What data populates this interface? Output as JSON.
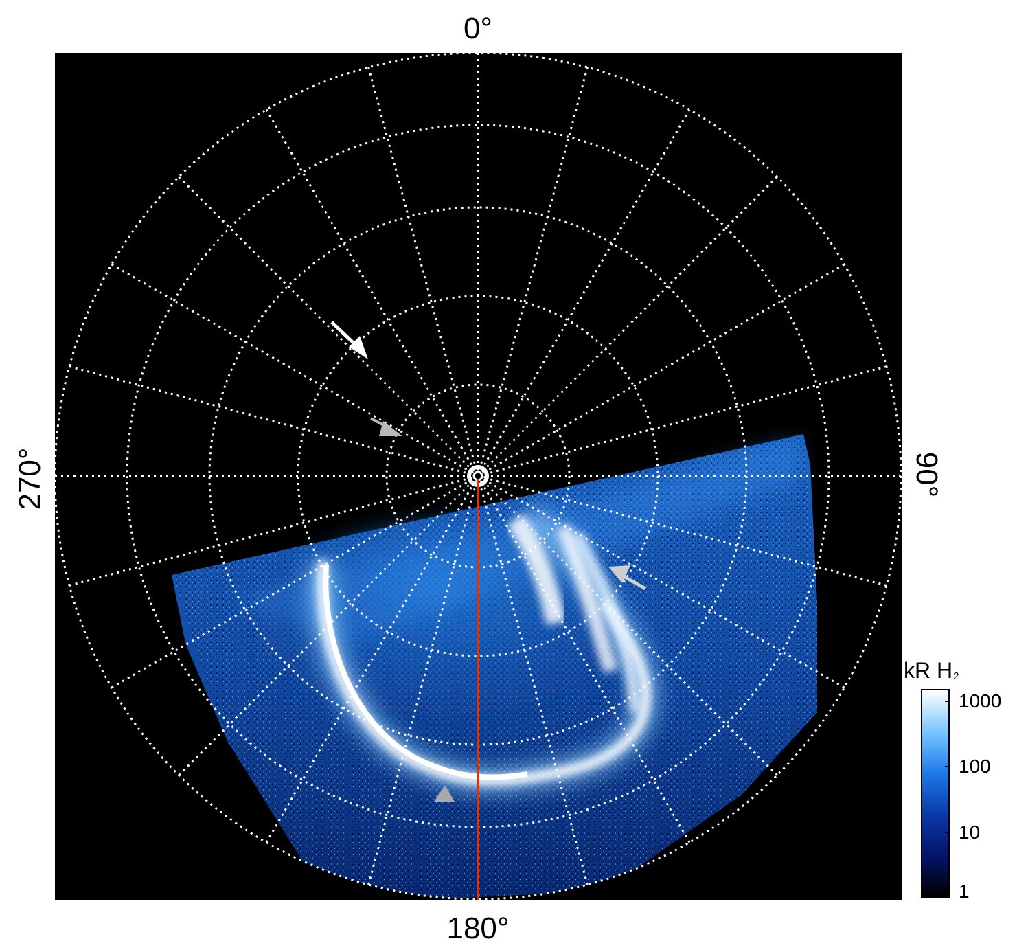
{
  "labels": {
    "top": "0°",
    "right": "90°",
    "bottom": "180°",
    "left": "270°"
  },
  "colorbar": {
    "title": "kR H",
    "title_subscript": "2",
    "ticks": [
      "1000",
      "100",
      "10",
      "1"
    ],
    "colors": [
      "#ffffff",
      "#79c7ff",
      "#1f7ae8",
      "#0a3aa8",
      "#05146a",
      "#000000"
    ]
  },
  "colors": {
    "background": "#000000",
    "grid": "#ffffff",
    "meridian_line": "#c8391e",
    "arrow_white": "#ffffff",
    "arrow_gray": "#b9b9b9"
  }
}
